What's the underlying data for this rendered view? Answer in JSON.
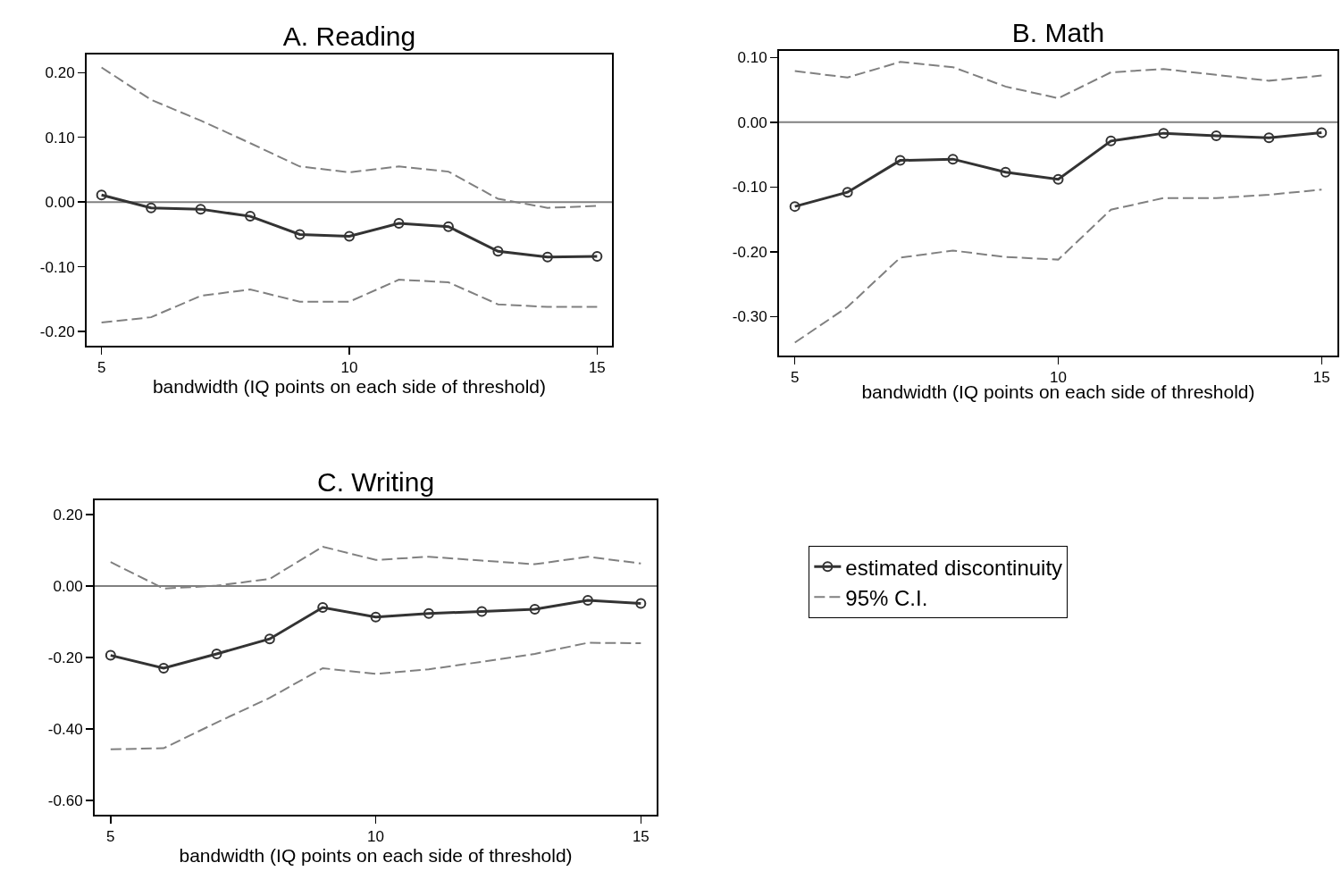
{
  "chart_data": [
    {
      "type": "line",
      "title": "A. Reading",
      "xlabel": "bandwidth (IQ points on each side of threshold)",
      "x": [
        5,
        6,
        7,
        8,
        9,
        10,
        11,
        12,
        13,
        14,
        15
      ],
      "xlim": [
        4.7,
        15.3
      ],
      "xticks": [
        5,
        10,
        15
      ],
      "ylim": [
        -0.222,
        0.228
      ],
      "yticks": [
        {
          "value": -0.2,
          "label": "-0.20"
        },
        {
          "value": -0.1,
          "label": "-0.10"
        },
        {
          "value": 0,
          "label": "0.00"
        },
        {
          "value": 0.1,
          "label": "0.10"
        },
        {
          "value": 0.2,
          "label": "0.20"
        }
      ],
      "grid": false,
      "legend": false,
      "ref_lines": [
        {
          "axis": "y",
          "value": 0,
          "color": "#808080"
        }
      ],
      "series": [
        {
          "color": "#333333",
          "marker": "circle",
          "line_style": "solid",
          "values": [
            0.011,
            -0.009,
            -0.011,
            -0.022,
            -0.05,
            -0.053,
            -0.033,
            -0.038,
            -0.076,
            -0.085,
            -0.084
          ]
        },
        {
          "color": "#808080",
          "marker": "none",
          "line_style": "dashed",
          "values": [
            0.208,
            0.158,
            0.126,
            0.091,
            0.055,
            0.046,
            0.055,
            0.047,
            0.005,
            -0.009,
            -0.006
          ]
        },
        {
          "color": "#808080",
          "marker": "none",
          "line_style": "dashed",
          "values": [
            -0.186,
            -0.178,
            -0.145,
            -0.135,
            -0.154,
            -0.154,
            -0.12,
            -0.124,
            -0.158,
            -0.162,
            -0.162
          ]
        }
      ]
    },
    {
      "type": "line",
      "title": "B. Math",
      "xlabel": "bandwidth (IQ points on each side of threshold)",
      "x": [
        5,
        6,
        7,
        8,
        9,
        10,
        11,
        12,
        13,
        14,
        15
      ],
      "xlim": [
        4.7,
        15.3
      ],
      "xticks": [
        5,
        10,
        15
      ],
      "ylim": [
        -0.36,
        0.11
      ],
      "yticks": [
        {
          "value": -0.3,
          "label": "-0.30"
        },
        {
          "value": -0.2,
          "label": "-0.20"
        },
        {
          "value": -0.1,
          "label": "-0.10"
        },
        {
          "value": 0,
          "label": "0.00"
        },
        {
          "value": 0.1,
          "label": "0.10"
        }
      ],
      "grid": false,
      "legend": false,
      "ref_lines": [
        {
          "axis": "y",
          "value": 0,
          "color": "#808080"
        }
      ],
      "series": [
        {
          "color": "#333333",
          "marker": "circle",
          "line_style": "solid",
          "values": [
            -0.13,
            -0.108,
            -0.059,
            -0.057,
            -0.077,
            -0.088,
            -0.029,
            -0.017,
            -0.021,
            -0.024,
            -0.016
          ]
        },
        {
          "color": "#808080",
          "marker": "none",
          "line_style": "dashed",
          "values": [
            0.079,
            0.069,
            0.093,
            0.085,
            0.055,
            0.037,
            0.077,
            0.082,
            0.073,
            0.064,
            0.072
          ]
        },
        {
          "color": "#808080",
          "marker": "none",
          "line_style": "dashed",
          "values": [
            -0.34,
            -0.285,
            -0.209,
            -0.198,
            -0.208,
            -0.212,
            -0.135,
            -0.117,
            -0.117,
            -0.112,
            -0.104
          ]
        }
      ]
    },
    {
      "type": "line",
      "title": "C. Writing",
      "xlabel": "bandwidth (IQ points on each side of threshold)",
      "x": [
        5,
        6,
        7,
        8,
        9,
        10,
        11,
        12,
        13,
        14,
        15
      ],
      "xlim": [
        4.7,
        15.3
      ],
      "xticks": [
        5,
        10,
        15
      ],
      "ylim": [
        -0.64,
        0.24
      ],
      "yticks": [
        {
          "value": -0.6,
          "label": "-0.60"
        },
        {
          "value": -0.4,
          "label": "-0.40"
        },
        {
          "value": -0.2,
          "label": "-0.20"
        },
        {
          "value": 0,
          "label": "0.00"
        },
        {
          "value": 0.2,
          "label": "0.20"
        }
      ],
      "grid": false,
      "legend": "right",
      "ref_lines": [
        {
          "axis": "y",
          "value": 0,
          "color": "#808080"
        }
      ],
      "series": [
        {
          "name": "estimated discontinuity",
          "color": "#333333",
          "marker": "circle",
          "line_style": "solid",
          "values": [
            -0.194,
            -0.23,
            -0.19,
            -0.148,
            -0.06,
            -0.087,
            -0.077,
            -0.071,
            -0.065,
            -0.04,
            -0.049
          ]
        },
        {
          "name": "95% C.I.",
          "color": "#808080",
          "marker": "none",
          "line_style": "dashed",
          "values": [
            0.067,
            -0.007,
            0.001,
            0.02,
            0.11,
            0.073,
            0.082,
            0.071,
            0.061,
            0.082,
            0.063
          ]
        },
        {
          "color": "#808080",
          "marker": "none",
          "line_style": "dashed",
          "values": [
            -0.457,
            -0.454,
            -0.382,
            -0.313,
            -0.23,
            -0.246,
            -0.233,
            -0.212,
            -0.19,
            -0.159,
            -0.16
          ]
        }
      ]
    }
  ]
}
